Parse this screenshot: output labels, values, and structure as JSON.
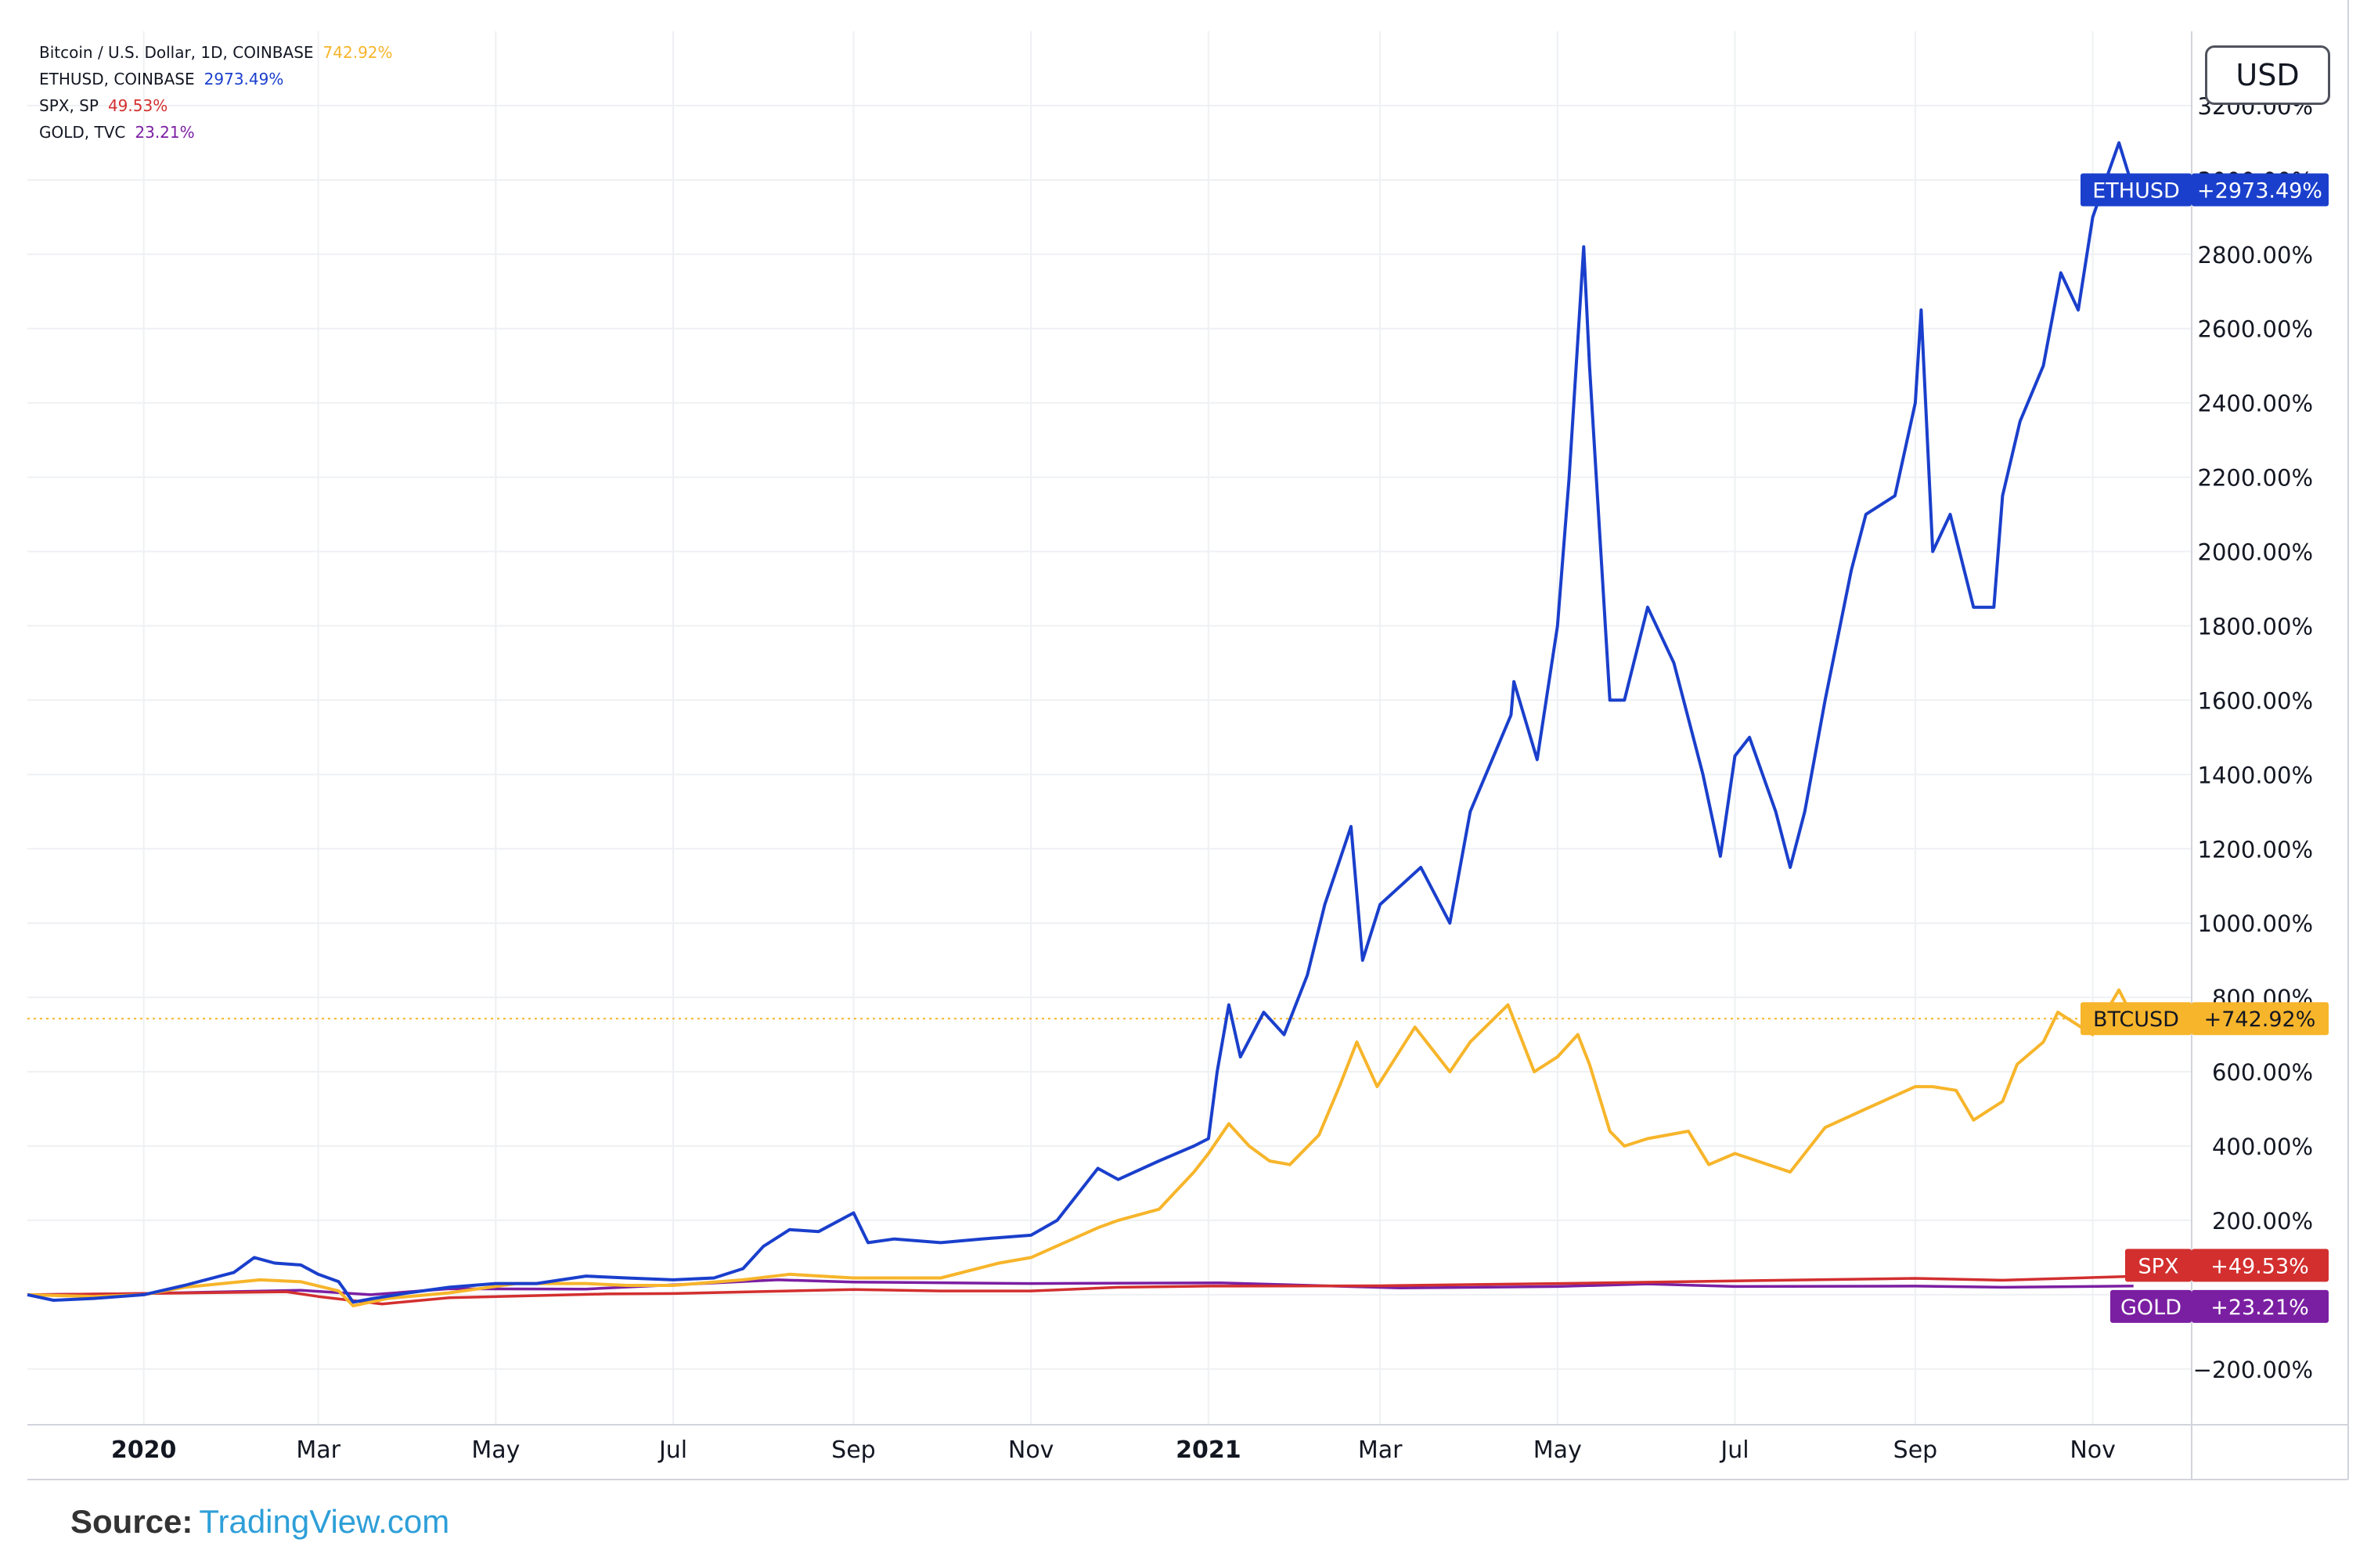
{
  "legend": [
    {
      "label": "Bitcoin / U.S. Dollar, 1D, COINBASE",
      "value": "742.92%",
      "color": "#f7b52b"
    },
    {
      "label": "ETHUSD, COINBASE",
      "value": "2973.49%",
      "color": "#1a3fcc"
    },
    {
      "label": "SPX, SP",
      "value": "49.53%",
      "color": "#d32f2f"
    },
    {
      "label": "GOLD, TVC",
      "value": "23.21%",
      "color": "#7b1fa2"
    }
  ],
  "currency_button": "USD",
  "source": {
    "prefix": "Source:",
    "link": "TradingView.com"
  },
  "colors": {
    "eth": "#1a3fcc",
    "btc": "#f7b52b",
    "spx": "#d32f2f",
    "gold": "#7b1fa2",
    "grid": "#eef0f3",
    "axis_text": "#131722"
  },
  "chart_data": {
    "type": "line",
    "ylim": [
      -350,
      3400
    ],
    "yticks": [
      -200,
      200,
      400,
      600,
      800,
      1000,
      1200,
      1400,
      1600,
      1800,
      2000,
      2200,
      2400,
      2600,
      2800,
      3000,
      3200
    ],
    "ytick_labels": [
      "−200.00%",
      "200.00%",
      "400.00%",
      "600.00%",
      "800.00%",
      "1000.00%",
      "1200.00%",
      "1400.00%",
      "1600.00%",
      "1800.00%",
      "2000.00%",
      "2200.00%",
      "2400.00%",
      "2600.00%",
      "2800.00%",
      "3000.00%",
      "3200.00%"
    ],
    "xlim": [
      "2019-11-22",
      "2021-12-05"
    ],
    "xticks": [
      {
        "date": "2020-01-01",
        "label": "2020",
        "bold": true
      },
      {
        "date": "2020-03-01",
        "label": "Mar",
        "bold": false
      },
      {
        "date": "2020-05-01",
        "label": "May",
        "bold": false
      },
      {
        "date": "2020-07-01",
        "label": "Jul",
        "bold": false
      },
      {
        "date": "2020-09-01",
        "label": "Sep",
        "bold": false
      },
      {
        "date": "2020-11-01",
        "label": "Nov",
        "bold": false
      },
      {
        "date": "2021-01-01",
        "label": "2021",
        "bold": true
      },
      {
        "date": "2021-03-01",
        "label": "Mar",
        "bold": false
      },
      {
        "date": "2021-05-01",
        "label": "May",
        "bold": false
      },
      {
        "date": "2021-07-01",
        "label": "Jul",
        "bold": false
      },
      {
        "date": "2021-09-01",
        "label": "Sep",
        "bold": false
      },
      {
        "date": "2021-11-01",
        "label": "Nov",
        "bold": false
      }
    ],
    "series": [
      {
        "key": "eth",
        "name": "ETHUSD",
        "last_label": "+2973.49%",
        "points": [
          [
            "2019-11-22",
            0
          ],
          [
            "2019-12-01",
            -15
          ],
          [
            "2019-12-15",
            -10
          ],
          [
            "2020-01-01",
            0
          ],
          [
            "2020-01-15",
            25
          ],
          [
            "2020-02-01",
            60
          ],
          [
            "2020-02-08",
            100
          ],
          [
            "2020-02-15",
            85
          ],
          [
            "2020-02-24",
            80
          ],
          [
            "2020-03-01",
            55
          ],
          [
            "2020-03-08",
            35
          ],
          [
            "2020-03-13",
            -20
          ],
          [
            "2020-03-20",
            -10
          ],
          [
            "2020-04-01",
            5
          ],
          [
            "2020-04-15",
            20
          ],
          [
            "2020-05-01",
            30
          ],
          [
            "2020-05-15",
            30
          ],
          [
            "2020-06-01",
            50
          ],
          [
            "2020-06-15",
            45
          ],
          [
            "2020-07-01",
            40
          ],
          [
            "2020-07-15",
            45
          ],
          [
            "2020-07-25",
            70
          ],
          [
            "2020-08-01",
            130
          ],
          [
            "2020-08-10",
            175
          ],
          [
            "2020-08-20",
            170
          ],
          [
            "2020-09-01",
            220
          ],
          [
            "2020-09-06",
            140
          ],
          [
            "2020-09-15",
            150
          ],
          [
            "2020-10-01",
            140
          ],
          [
            "2020-10-15",
            150
          ],
          [
            "2020-11-01",
            160
          ],
          [
            "2020-11-10",
            200
          ],
          [
            "2020-11-24",
            340
          ],
          [
            "2020-12-01",
            310
          ],
          [
            "2020-12-15",
            360
          ],
          [
            "2020-12-27",
            400
          ],
          [
            "2021-01-01",
            420
          ],
          [
            "2021-01-04",
            600
          ],
          [
            "2021-01-08",
            780
          ],
          [
            "2021-01-12",
            640
          ],
          [
            "2021-01-20",
            760
          ],
          [
            "2021-01-27",
            700
          ],
          [
            "2021-02-04",
            860
          ],
          [
            "2021-02-10",
            1050
          ],
          [
            "2021-02-19",
            1260
          ],
          [
            "2021-02-23",
            900
          ],
          [
            "2021-03-01",
            1050
          ],
          [
            "2021-03-15",
            1150
          ],
          [
            "2021-03-25",
            1000
          ],
          [
            "2021-04-01",
            1300
          ],
          [
            "2021-04-15,",
            1560
          ],
          [
            "2021-04-16",
            1650
          ],
          [
            "2021-04-24",
            1440
          ],
          [
            "2021-05-01",
            1800
          ],
          [
            "2021-05-05",
            2200
          ],
          [
            "2021-05-10",
            2820
          ],
          [
            "2021-05-12",
            2500
          ],
          [
            "2021-05-19",
            1600
          ],
          [
            "2021-05-24",
            1600
          ],
          [
            "2021-06-01",
            1850
          ],
          [
            "2021-06-10",
            1700
          ],
          [
            "2021-06-20",
            1400
          ],
          [
            "2021-06-26",
            1180
          ],
          [
            "2021-07-01",
            1450
          ],
          [
            "2021-07-06",
            1500
          ],
          [
            "2021-07-15",
            1300
          ],
          [
            "2021-07-20",
            1150
          ],
          [
            "2021-07-25",
            1300
          ],
          [
            "2021-08-01",
            1600
          ],
          [
            "2021-08-10",
            1950
          ],
          [
            "2021-08-15",
            2100
          ],
          [
            "2021-08-25",
            2150
          ],
          [
            "2021-09-01",
            2400
          ],
          [
            "2021-09-03",
            2650
          ],
          [
            "2021-09-07",
            2000
          ],
          [
            "2021-09-13",
            2100
          ],
          [
            "2021-09-21",
            1850
          ],
          [
            "2021-09-28",
            1850
          ],
          [
            "2021-10-01",
            2150
          ],
          [
            "2021-10-07",
            2350
          ],
          [
            "2021-10-15",
            2500
          ],
          [
            "2021-10-21",
            2750
          ],
          [
            "2021-10-27",
            2650
          ],
          [
            "2021-11-01",
            2900
          ],
          [
            "2021-11-10",
            3100
          ],
          [
            "2021-11-15",
            2973
          ]
        ]
      },
      {
        "key": "btc",
        "name": "BTCUSD",
        "last_label": "+742.92%",
        "points": [
          [
            "2019-11-22",
            0
          ],
          [
            "2019-12-15",
            -5
          ],
          [
            "2020-01-01",
            0
          ],
          [
            "2020-01-15",
            20
          ],
          [
            "2020-02-10",
            40
          ],
          [
            "2020-02-24",
            35
          ],
          [
            "2020-03-08",
            10
          ],
          [
            "2020-03-13",
            -30
          ],
          [
            "2020-03-25",
            -10
          ],
          [
            "2020-04-15",
            5
          ],
          [
            "2020-05-08",
            30
          ],
          [
            "2020-06-01",
            30
          ],
          [
            "2020-06-15",
            25
          ],
          [
            "2020-07-01",
            25
          ],
          [
            "2020-07-25",
            40
          ],
          [
            "2020-08-10",
            55
          ],
          [
            "2020-09-01",
            45
          ],
          [
            "2020-09-15",
            45
          ],
          [
            "2020-10-01",
            45
          ],
          [
            "2020-10-21",
            85
          ],
          [
            "2020-11-01",
            100
          ],
          [
            "2020-11-24",
            180
          ],
          [
            "2020-12-01",
            200
          ],
          [
            "2020-12-15",
            230
          ],
          [
            "2020-12-27",
            330
          ],
          [
            "2021-01-01",
            380
          ],
          [
            "2021-01-08",
            460
          ],
          [
            "2021-01-15",
            400
          ],
          [
            "2021-01-22",
            360
          ],
          [
            "2021-01-29",
            350
          ],
          [
            "2021-02-08",
            430
          ],
          [
            "2021-02-15",
            560
          ],
          [
            "2021-02-21",
            680
          ],
          [
            "2021-02-28",
            560
          ],
          [
            "2021-03-13",
            720
          ],
          [
            "2021-03-25",
            600
          ],
          [
            "2021-04-01",
            680
          ],
          [
            "2021-04-14",
            780
          ],
          [
            "2021-04-23",
            600
          ],
          [
            "2021-05-01",
            640
          ],
          [
            "2021-05-08",
            700
          ],
          [
            "2021-05-12",
            620
          ],
          [
            "2021-05-19",
            440
          ],
          [
            "2021-05-24",
            400
          ],
          [
            "2021-06-01",
            420
          ],
          [
            "2021-06-15",
            440
          ],
          [
            "2021-06-22",
            350
          ],
          [
            "2021-07-01",
            380
          ],
          [
            "2021-07-20",
            330
          ],
          [
            "2021-08-01",
            450
          ],
          [
            "2021-08-15",
            500
          ],
          [
            "2021-09-01",
            560
          ],
          [
            "2021-09-07",
            560
          ],
          [
            "2021-09-15",
            550
          ],
          [
            "2021-09-21",
            470
          ],
          [
            "2021-10-01",
            520
          ],
          [
            "2021-10-06",
            620
          ],
          [
            "2021-10-15",
            680
          ],
          [
            "2021-10-20",
            760
          ],
          [
            "2021-11-01",
            700
          ],
          [
            "2021-11-10",
            820
          ],
          [
            "2021-11-15",
            742.92
          ]
        ]
      },
      {
        "key": "spx",
        "name": "SPX",
        "last_label": "+49.53%",
        "points": [
          [
            "2019-11-22",
            0
          ],
          [
            "2020-01-01",
            3
          ],
          [
            "2020-02-19",
            8
          ],
          [
            "2020-03-01",
            -5
          ],
          [
            "2020-03-23",
            -25
          ],
          [
            "2020-04-15",
            -8
          ],
          [
            "2020-06-08",
            2
          ],
          [
            "2020-07-01",
            3
          ],
          [
            "2020-09-01",
            14
          ],
          [
            "2020-10-01",
            10
          ],
          [
            "2020-11-01",
            10
          ],
          [
            "2020-12-01",
            20
          ],
          [
            "2021-01-01",
            23
          ],
          [
            "2021-03-01",
            24
          ],
          [
            "2021-05-01",
            30
          ],
          [
            "2021-07-01",
            37
          ],
          [
            "2021-09-01",
            44
          ],
          [
            "2021-10-01",
            39
          ],
          [
            "2021-11-15",
            49.53
          ]
        ]
      },
      {
        "key": "gold",
        "name": "GOLD",
        "last_label": "+23.21%",
        "points": [
          [
            "2019-11-22",
            0
          ],
          [
            "2020-01-01",
            3
          ],
          [
            "2020-02-24",
            12
          ],
          [
            "2020-03-19",
            0
          ],
          [
            "2020-04-15",
            16
          ],
          [
            "2020-06-01",
            15
          ],
          [
            "2020-08-06",
            40
          ],
          [
            "2020-09-01",
            34
          ],
          [
            "2020-11-01",
            30
          ],
          [
            "2021-01-05",
            32
          ],
          [
            "2021-03-08",
            18
          ],
          [
            "2021-05-01",
            22
          ],
          [
            "2021-06-01",
            29
          ],
          [
            "2021-07-01",
            22
          ],
          [
            "2021-09-01",
            23
          ],
          [
            "2021-10-01",
            20
          ],
          [
            "2021-11-15",
            23.21
          ]
        ]
      }
    ],
    "horizontal_marker": {
      "value": 742.92,
      "color": "#f7b52b"
    }
  }
}
